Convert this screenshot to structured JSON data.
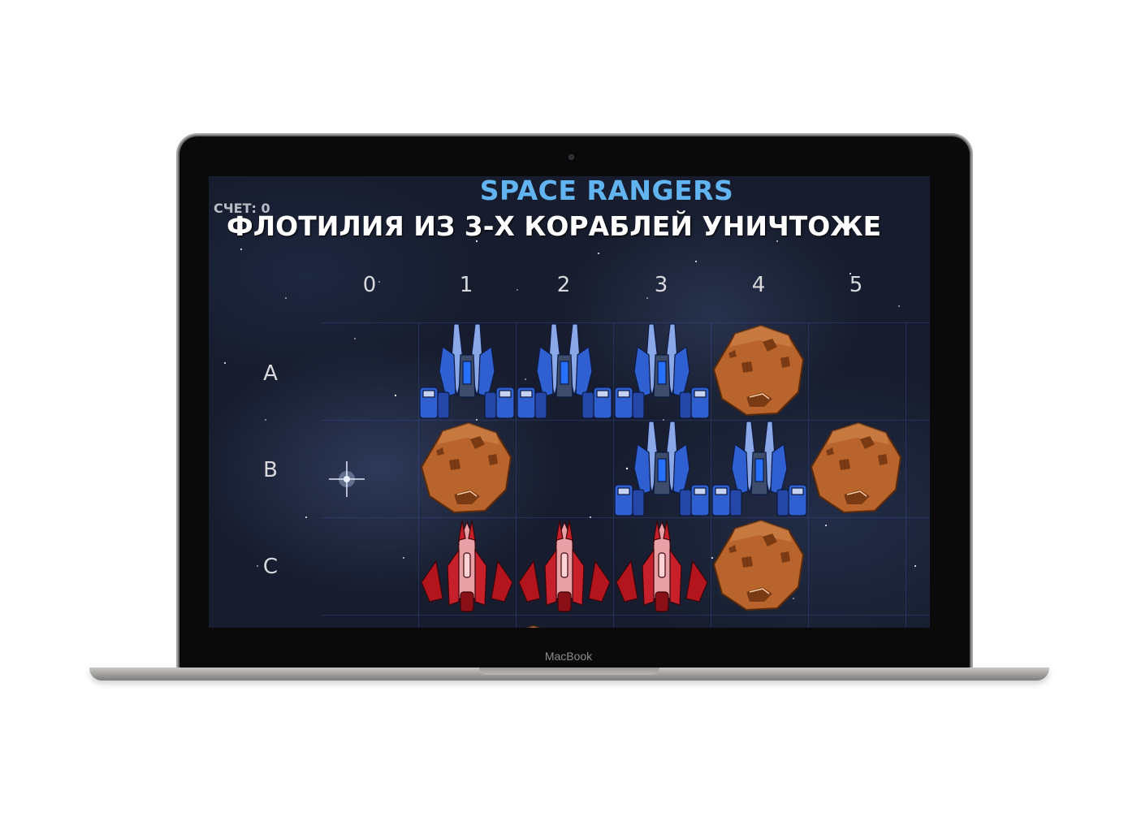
{
  "device": {
    "brand_label": "MacBook"
  },
  "game": {
    "title": "SPACE RANGERS",
    "score_label": "СЧЕТ: 0",
    "message": "ФЛОТИЛИЯ ИЗ 3-Х КОРАБЛЕЙ УНИЧТОЖЕ",
    "columns": [
      "0",
      "1",
      "2",
      "3",
      "4",
      "5"
    ],
    "rows": [
      "A",
      "B",
      "C"
    ],
    "board": [
      [
        "empty",
        "blue-ship",
        "blue-ship",
        "blue-ship",
        "asteroid",
        "empty"
      ],
      [
        "empty",
        "asteroid",
        "empty",
        "blue-ship",
        "blue-ship",
        "asteroid"
      ],
      [
        "empty",
        "red-ship",
        "red-ship",
        "red-ship",
        "asteroid",
        "empty"
      ]
    ],
    "colors": {
      "title": "#62b4f0",
      "background": "#171d2e",
      "blue_ship": "#2f5fd0",
      "red_ship": "#c8202a",
      "asteroid": "#b8642c"
    }
  }
}
